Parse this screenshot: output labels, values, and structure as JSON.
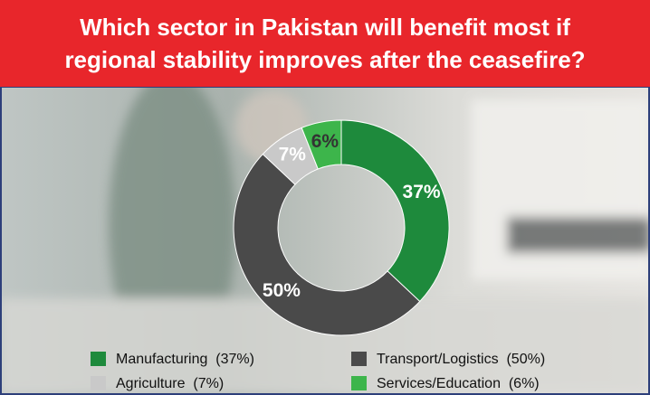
{
  "chart_data": {
    "type": "donut",
    "title": "Which sector in Pakistan will benefit most if regional stability improves after the ceasefire?",
    "categories": [
      "Manufacturing  (37%)",
      "Transport/Logistics  (50%)",
      "Agriculture  (7%)",
      "Services/Education  (6%)"
    ],
    "values": [
      37,
      50,
      7,
      6
    ],
    "value_labels": [
      "37%",
      "50%",
      "7%",
      "6%"
    ],
    "colors": [
      "#1e8a3c",
      "#4a4a4a",
      "#c9c9c9",
      "#3db54b"
    ]
  }
}
